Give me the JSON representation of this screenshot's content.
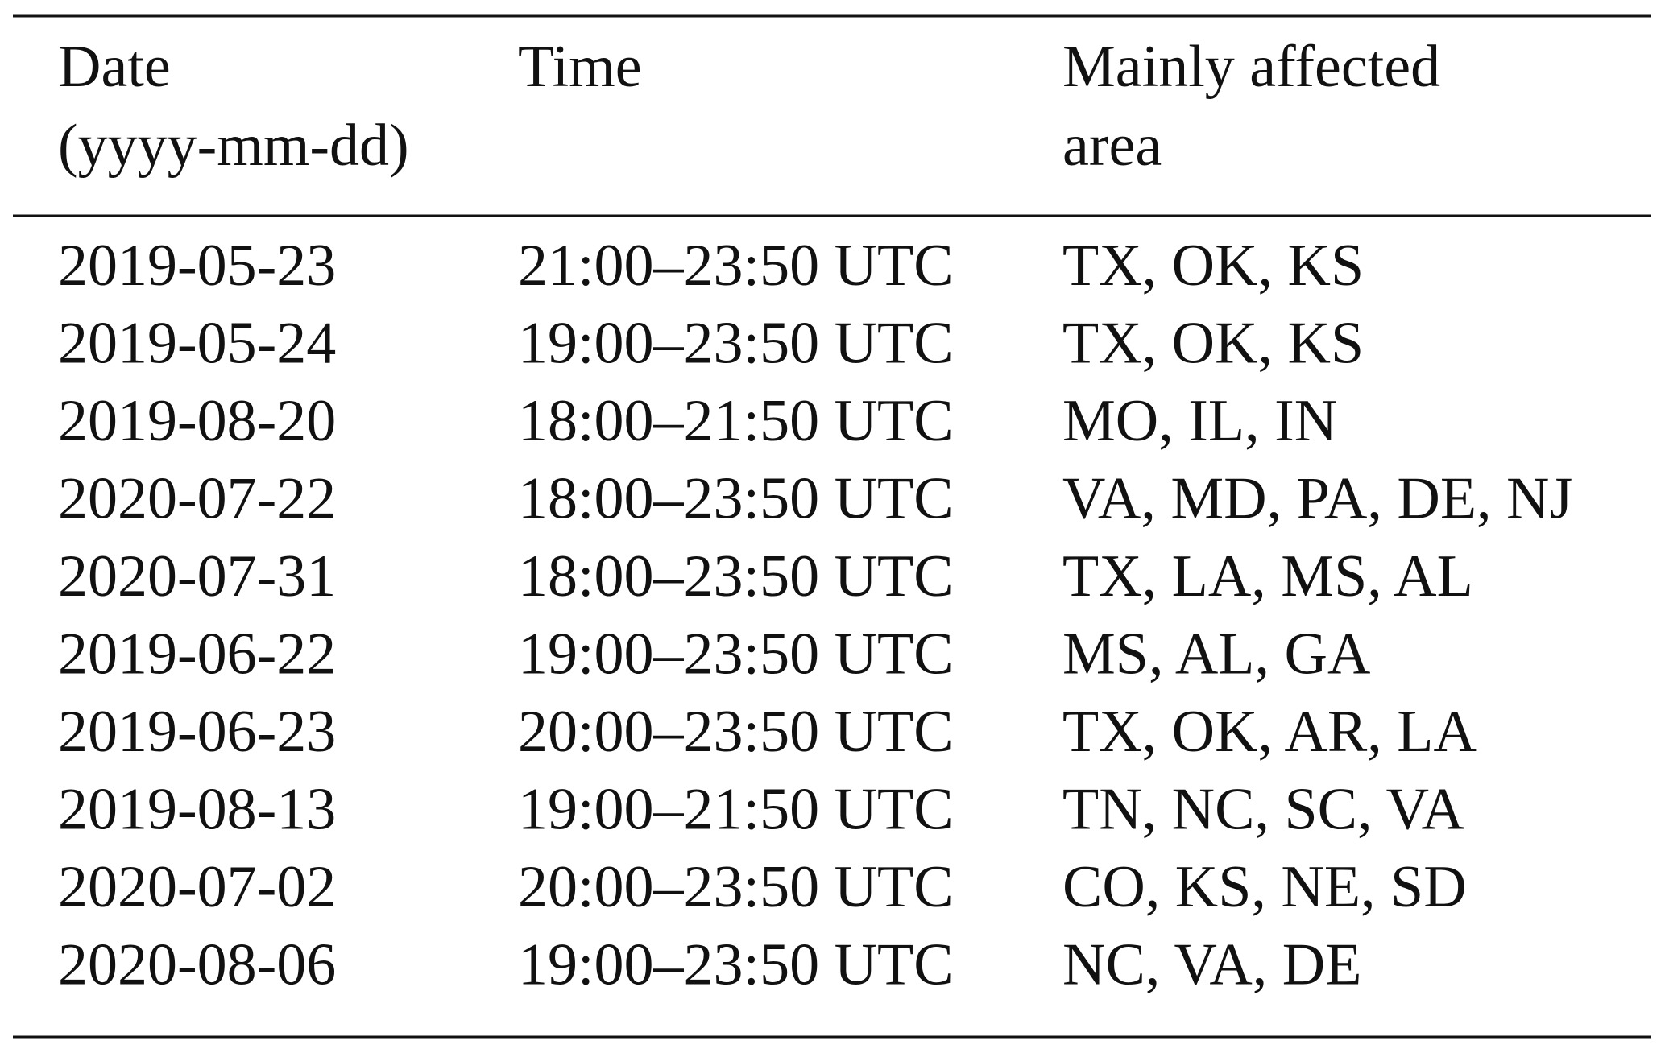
{
  "table": {
    "header": [
      [
        "Date",
        "(yyyy-mm-dd)"
      ],
      [
        "Time"
      ],
      [
        "Mainly affected",
        "area"
      ]
    ],
    "rows": [
      [
        "2019-05-23",
        "21:00–23:50 UTC",
        "TX, OK, KS"
      ],
      [
        "2019-05-24",
        "19:00–23:50 UTC",
        "TX, OK, KS"
      ],
      [
        "2019-08-20",
        "18:00–21:50 UTC",
        "MO, IL, IN"
      ],
      [
        "2020-07-22",
        "18:00–23:50 UTC",
        "VA, MD, PA, DE, NJ"
      ],
      [
        "2020-07-31",
        "18:00–23:50 UTC",
        "TX, LA, MS, AL"
      ],
      [
        "2019-06-22",
        "19:00–23:50 UTC",
        "MS, AL, GA"
      ],
      [
        "2019-06-23",
        "20:00–23:50 UTC",
        "TX, OK, AR, LA"
      ],
      [
        "2019-08-13",
        "19:00–21:50 UTC",
        "TN, NC, SC, VA"
      ],
      [
        "2020-07-02",
        "20:00–23:50 UTC",
        "CO, KS, NE, SD"
      ],
      [
        "2020-08-06",
        "19:00–23:50 UTC",
        "NC, VA, DE"
      ]
    ]
  }
}
